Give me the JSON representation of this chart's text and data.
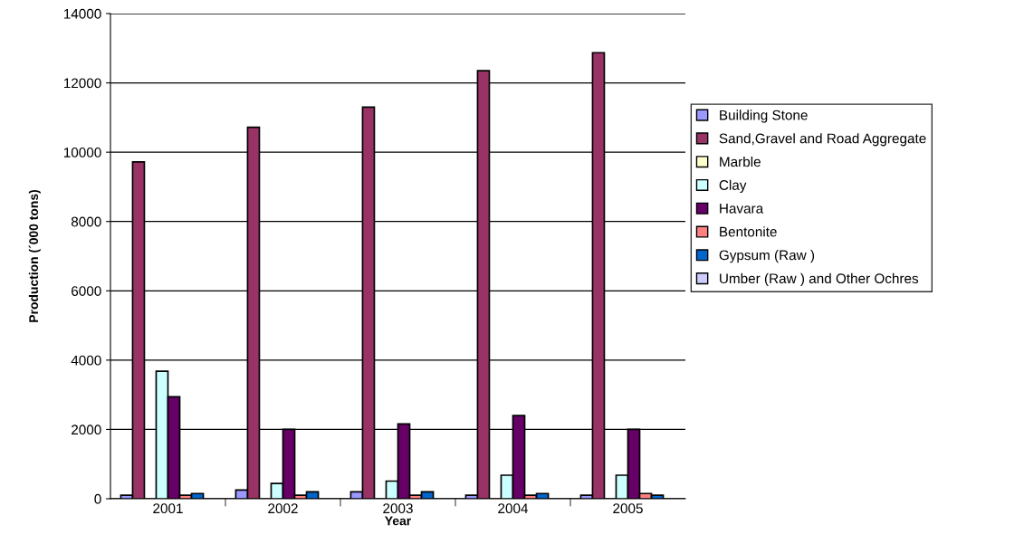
{
  "chart_data": {
    "type": "bar",
    "xlabel": "Year",
    "ylabel": "Production (´000 tons)",
    "categories": [
      "2001",
      "2002",
      "2003",
      "2004",
      "2005"
    ],
    "series": [
      {
        "name": "Building Stone",
        "color": "#9999ff",
        "values": [
          100,
          250,
          200,
          100,
          100
        ]
      },
      {
        "name": "Sand,Gravel and Road Aggregate",
        "color": "#993366",
        "values": [
          9720,
          10720,
          11300,
          12350,
          12870
        ]
      },
      {
        "name": "Marble",
        "color": "#ffffcc",
        "values": [
          null,
          null,
          null,
          null,
          null
        ]
      },
      {
        "name": "Clay",
        "color": "#ccffff",
        "values": [
          3680,
          440,
          510,
          680,
          680
        ]
      },
      {
        "name": "Havara",
        "color": "#660066",
        "values": [
          2940,
          2000,
          2160,
          2400,
          2000
        ]
      },
      {
        "name": "Bentonite",
        "color": "#ff8080",
        "values": [
          100,
          100,
          100,
          100,
          150
        ]
      },
      {
        "name": "Gypsum (Raw )",
        "color": "#0066cc",
        "values": [
          150,
          200,
          200,
          150,
          100
        ]
      },
      {
        "name": "Umber (Raw ) and Other Ochres",
        "color": "#ccccff",
        "values": [
          null,
          null,
          null,
          null,
          null
        ]
      }
    ],
    "ylim": [
      0,
      14000
    ],
    "yticks": [
      0,
      2000,
      4000,
      6000,
      8000,
      10000,
      12000,
      14000
    ],
    "grid": "y",
    "legend": "right"
  }
}
